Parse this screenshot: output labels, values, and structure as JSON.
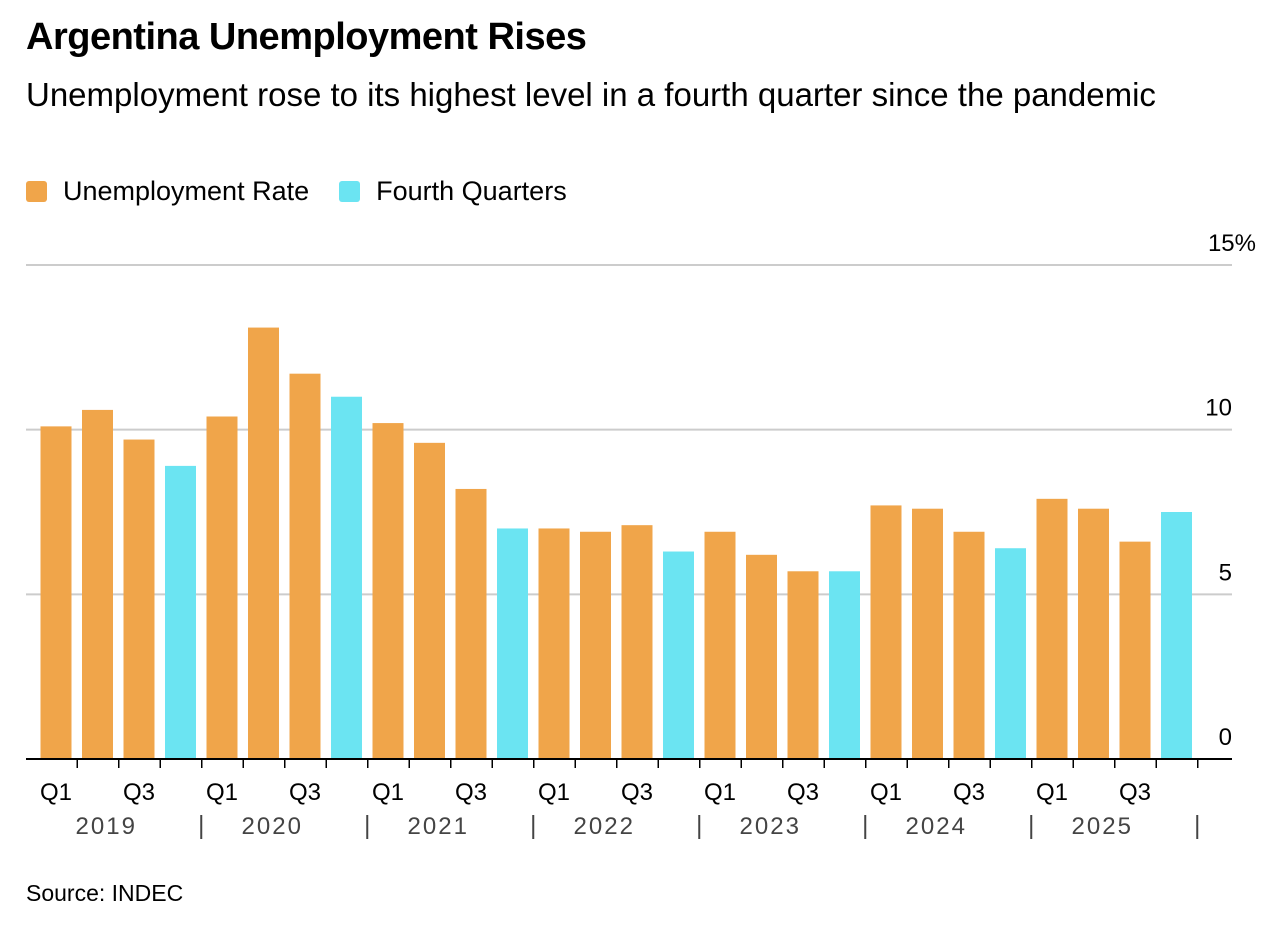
{
  "title": "Argentina Unemployment Rises",
  "subtitle": "Unemployment rose to its highest level in a fourth quarter since the pandemic",
  "source": "Source: INDEC",
  "colors": {
    "rate": "#F0A54A",
    "fourth": "#6BE4F2",
    "grid": "#cccccc",
    "axis": "#000000"
  },
  "legend": [
    {
      "label": "Unemployment Rate",
      "color": "#F0A54A"
    },
    {
      "label": "Fourth Quarters",
      "color": "#6BE4F2"
    }
  ],
  "chart_data": {
    "type": "bar",
    "ylim": [
      0,
      15
    ],
    "y_ticks": [
      "15%",
      "10",
      "5",
      "0"
    ],
    "y_tick_values": [
      15,
      10,
      5,
      0
    ],
    "grid": true,
    "quarter_labels": [
      "Q1",
      "Q3"
    ],
    "years": [
      "2019",
      "2020",
      "2021",
      "2022",
      "2023",
      "2024",
      "2025"
    ],
    "categories": [
      "2019 Q1",
      "2019 Q2",
      "2019 Q3",
      "2019 Q4",
      "2020 Q1",
      "2020 Q2",
      "2020 Q3",
      "2020 Q4",
      "2021 Q1",
      "2021 Q2",
      "2021 Q3",
      "2021 Q4",
      "2022 Q1",
      "2022 Q2",
      "2022 Q3",
      "2022 Q4",
      "2023 Q1",
      "2023 Q2",
      "2023 Q3",
      "2023 Q4",
      "2024 Q1",
      "2024 Q2",
      "2024 Q3",
      "2024 Q4",
      "2025 Q1",
      "2025 Q2",
      "2025 Q3",
      "2025 Q4"
    ],
    "values": [
      10.1,
      10.6,
      9.7,
      8.9,
      10.4,
      13.1,
      11.7,
      11.0,
      10.2,
      9.6,
      8.2,
      7.0,
      7.0,
      6.9,
      7.1,
      6.3,
      6.9,
      6.2,
      5.7,
      5.7,
      7.7,
      7.6,
      6.9,
      6.4,
      7.9,
      7.6,
      6.6,
      7.5
    ],
    "series": [
      {
        "name": "Unemployment Rate",
        "color": "#F0A54A"
      },
      {
        "name": "Fourth Quarters",
        "color": "#6BE4F2"
      }
    ]
  }
}
